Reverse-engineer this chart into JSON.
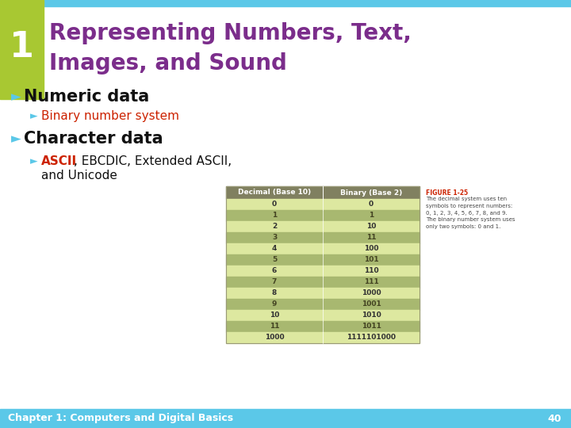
{
  "title_line1": "Representing Numbers, Text,",
  "title_line2": "Images, and Sound",
  "slide_number": "1",
  "bg_color": "#ffffff",
  "header_bar_color": "#a8c832",
  "header_bar_top_color": "#5bc8e8",
  "title_color": "#7b2d8b",
  "slide_num_color": "#ffffff",
  "bullet_arrow_color": "#5bc8e8",
  "bullet1": "Numeric data",
  "bullet1_color": "#111111",
  "sub_bullet1": "Binary number system",
  "sub_bullet1_color": "#cc2200",
  "sub_bullet1_arrow": "#5bc8e8",
  "bullet2": "Character data",
  "bullet2_color": "#111111",
  "sub_bullet2_ascii": "ASCII",
  "sub_bullet2_rest": ", EBCDIC, Extended ASCII,",
  "sub_bullet2_line2": "and Unicode",
  "sub_bullet2_ascii_color": "#cc2200",
  "sub_bullet2_rest_color": "#111111",
  "sub_bullet2_arrow": "#5bc8e8",
  "footer_text": "Chapter 1: Computers and Digital Basics",
  "footer_page": "40",
  "footer_bg": "#5bc8e8",
  "footer_text_color": "#ffffff",
  "table_header_bg": "#808060",
  "table_odd_bg": "#dde8a0",
  "table_even_bg": "#a8b870",
  "table_header_text": "#ffffff",
  "table_data_odd_color": "#333333",
  "table_data_even_color": "#444422",
  "table_col1": "Decimal (Base 10)",
  "table_col2": "Binary (Base 2)",
  "table_rows": [
    [
      "0",
      "0"
    ],
    [
      "1",
      "1"
    ],
    [
      "2",
      "10"
    ],
    [
      "3",
      "11"
    ],
    [
      "4",
      "100"
    ],
    [
      "5",
      "101"
    ],
    [
      "6",
      "110"
    ],
    [
      "7",
      "111"
    ],
    [
      "8",
      "1000"
    ],
    [
      "9",
      "1001"
    ],
    [
      "10",
      "1010"
    ],
    [
      "11",
      "1011"
    ],
    [
      "1000",
      "1111101000"
    ]
  ],
  "figure_label": "FIGURE 1-25",
  "figure_label_color": "#cc2200",
  "figure_caption": "The decimal system uses ten\nsymbols to represent numbers:\n0, 1, 2, 3, 4, 5, 6, 7, 8, and 9.\nThe binary number system uses\nonly two symbols: 0 and 1.",
  "figure_caption_color": "#444444"
}
